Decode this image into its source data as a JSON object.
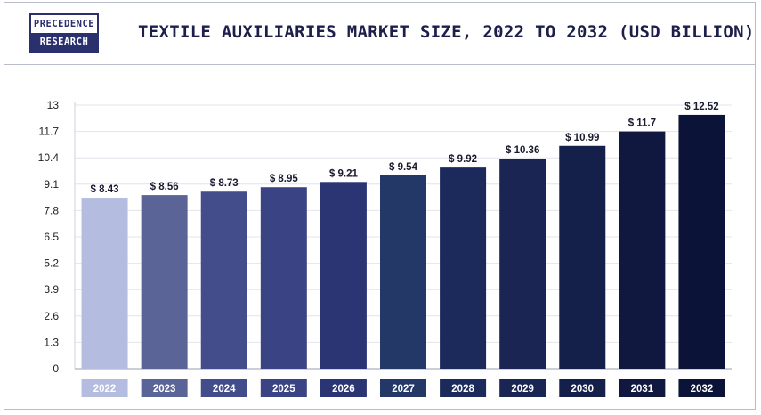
{
  "header": {
    "logo_line1": "PRECEDENCE",
    "logo_line2": "RESEARCH",
    "title": "TEXTILE AUXILIARIES MARKET SIZE, 2022 TO 2032 (USD BILLION)"
  },
  "chart_data": {
    "type": "bar",
    "title": "TEXTILE AUXILIARIES MARKET SIZE, 2022 TO 2032 (USD BILLION)",
    "categories": [
      "2022",
      "2023",
      "2024",
      "2025",
      "2026",
      "2027",
      "2028",
      "2029",
      "2030",
      "2031",
      "2032"
    ],
    "values": [
      8.43,
      8.56,
      8.73,
      8.95,
      9.21,
      9.54,
      9.92,
      10.36,
      10.99,
      11.7,
      12.52
    ],
    "value_labels": [
      "$ 8.43",
      "$ 8.56",
      "$ 8.73",
      "$ 8.95",
      "$ 9.21",
      "$ 9.54",
      "$ 9.92",
      "$ 10.36",
      "$ 10.99",
      "$ 11.7",
      "$ 12.52"
    ],
    "yticks": [
      0,
      1.3,
      2.6,
      3.9,
      5.2,
      6.5,
      7.8,
      9.1,
      10.4,
      11.7,
      13
    ],
    "ylim": [
      0,
      13
    ],
    "xlabel": "",
    "ylabel": "",
    "grid": true,
    "colors": [
      "#b4bce0",
      "#5a6496",
      "#444d8c",
      "#3a4484",
      "#2c3574",
      "#233866",
      "#1b2a5a",
      "#1a2553",
      "#15204a",
      "#101840",
      "#0c1338"
    ]
  }
}
